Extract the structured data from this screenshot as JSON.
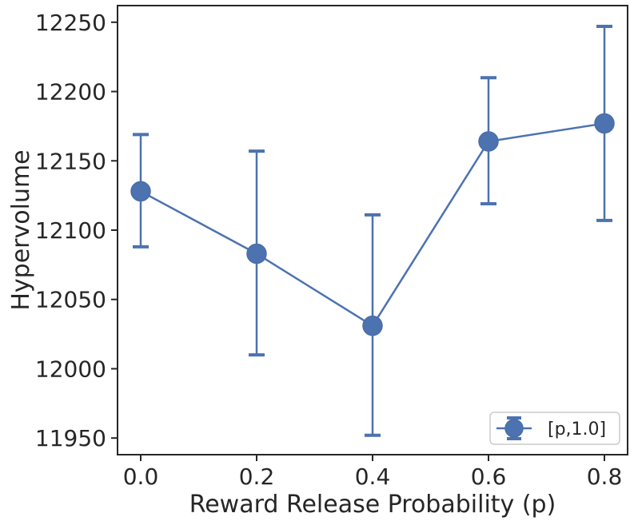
{
  "chart_data": {
    "type": "line",
    "title": "",
    "xlabel": "Reward Release Probability (p)",
    "ylabel": "Hypervolume",
    "x": [
      0.0,
      0.2,
      0.4,
      0.6,
      0.8
    ],
    "xticks": [
      "0.0",
      "0.2",
      "0.4",
      "0.6",
      "0.8"
    ],
    "xlim": [
      -0.04,
      0.84
    ],
    "yticks": [
      "11950",
      "12000",
      "12050",
      "12100",
      "12150",
      "12200",
      "12250"
    ],
    "ylim": [
      11938,
      12262
    ],
    "grid": false,
    "legend_position": "bottom-right",
    "series": [
      {
        "name": "[p,1.0]",
        "color": "#4c72b0",
        "values": [
          12128,
          12083,
          12031,
          12164,
          12177
        ],
        "error_low": [
          12088,
          12010,
          11952,
          12119,
          12107
        ],
        "error_high": [
          12169,
          12157,
          12111,
          12210,
          12247
        ]
      }
    ]
  }
}
